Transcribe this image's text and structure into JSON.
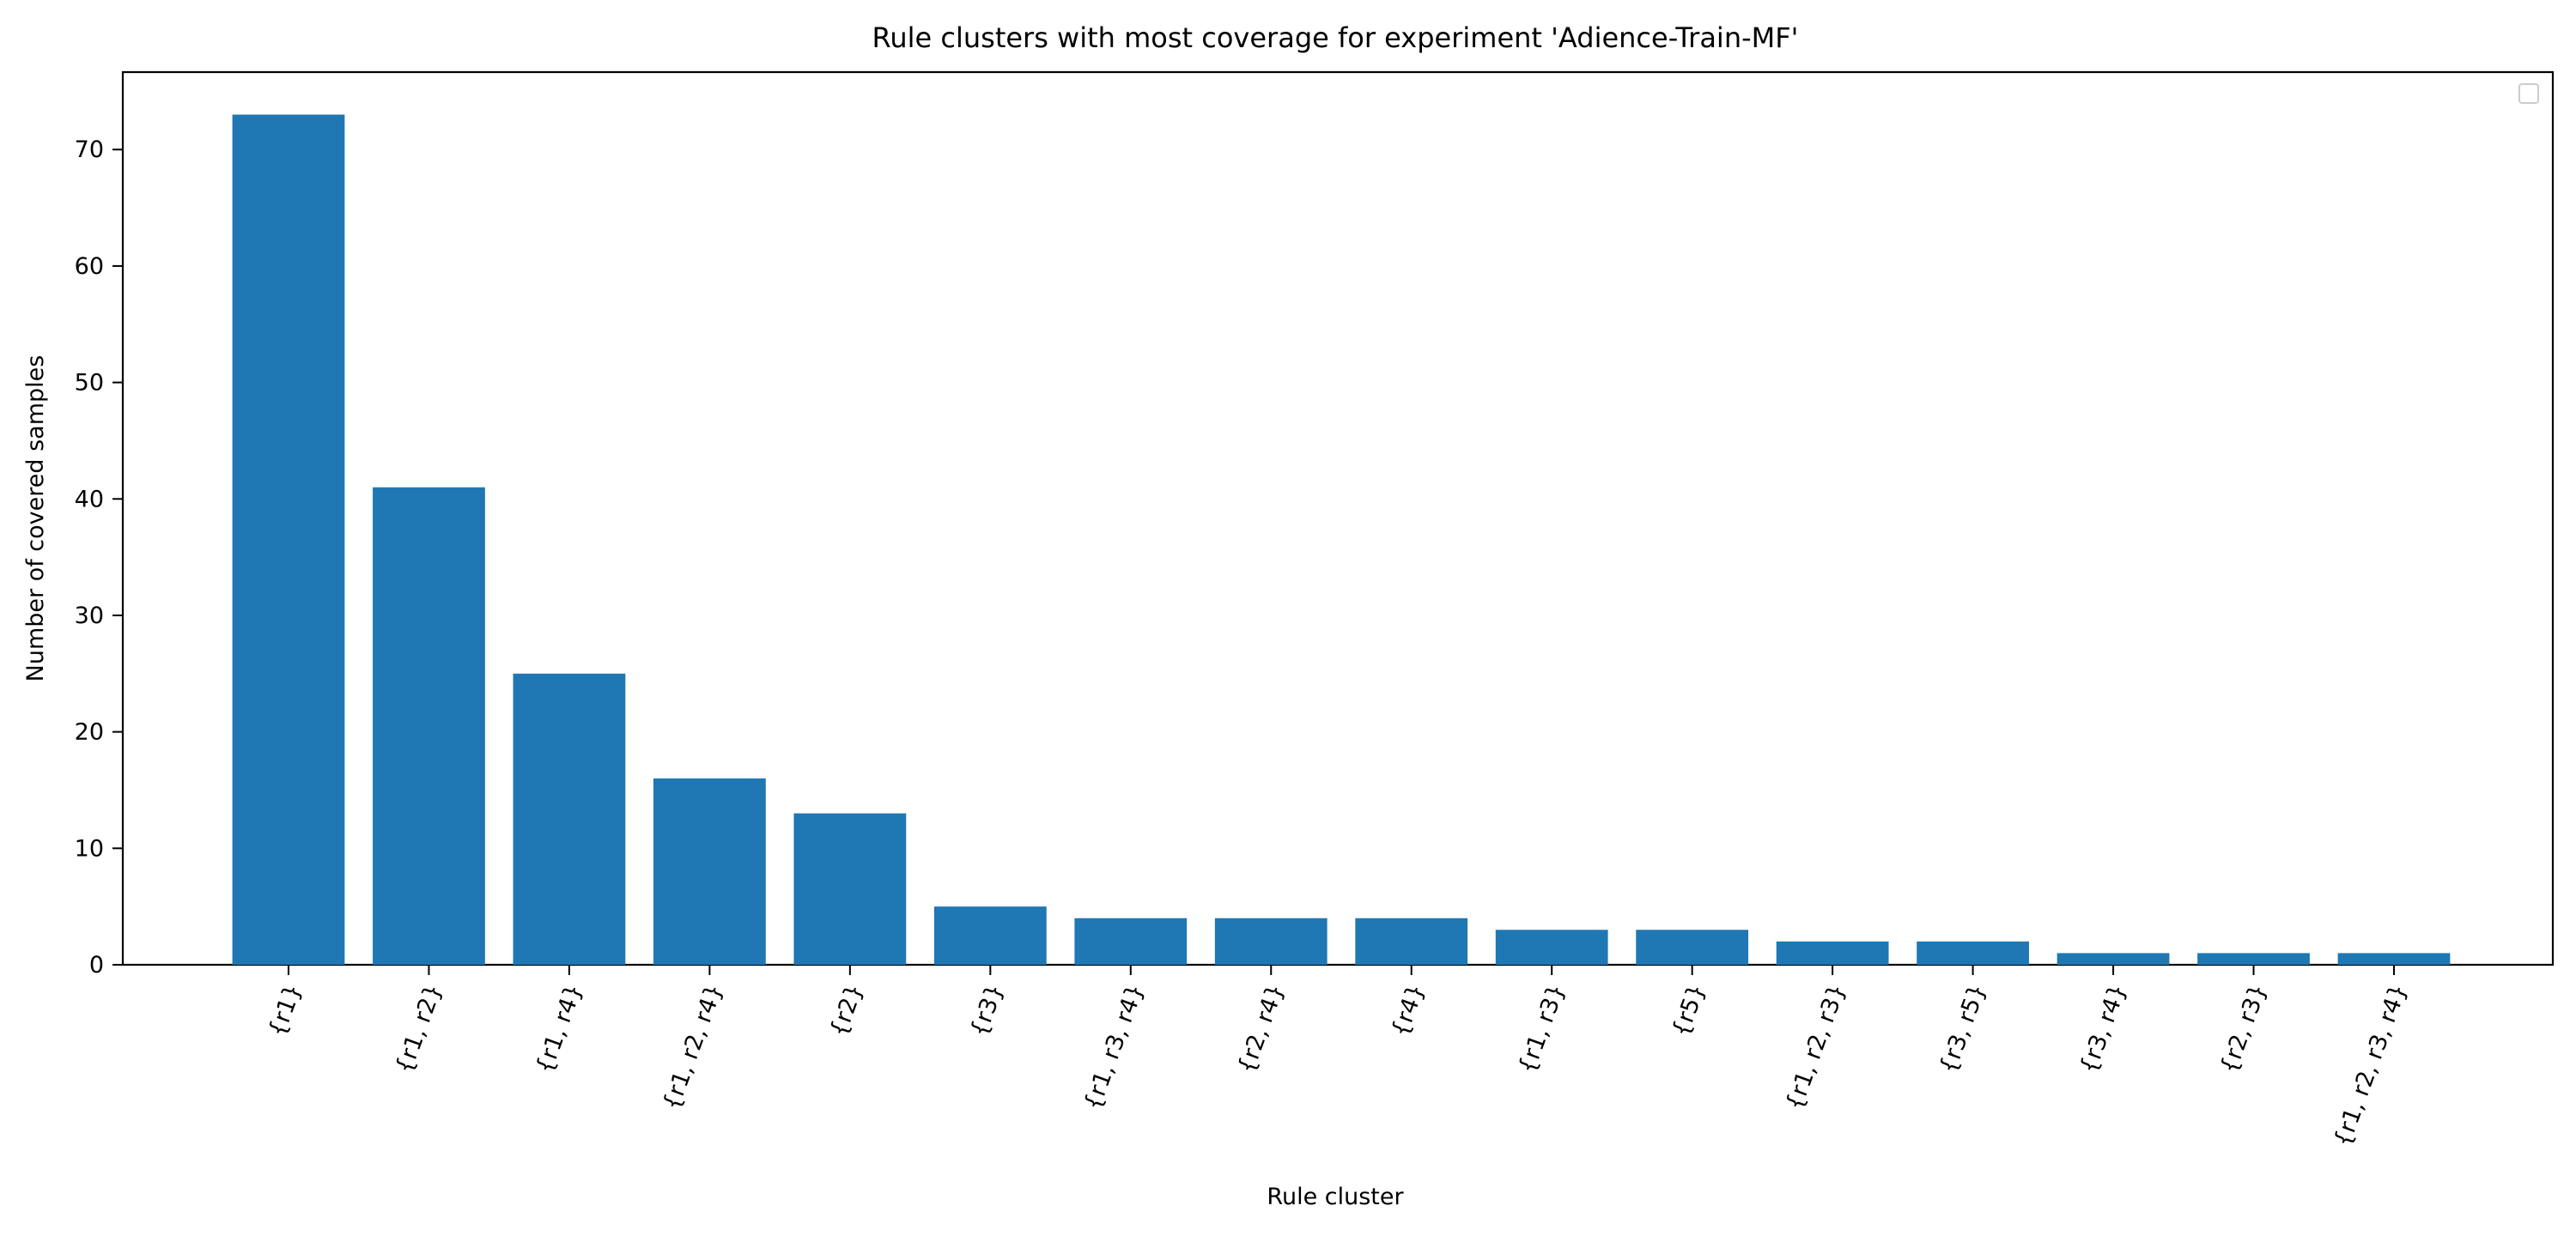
{
  "chart_data": {
    "type": "bar",
    "title": "Rule clusters with most coverage for experiment 'Adience-Train-MF'",
    "xlabel": "Rule cluster",
    "ylabel": "Number of covered samples",
    "categories": [
      "{r1}",
      "{r1, r2}",
      "{r1, r4}",
      "{r1, r2, r4}",
      "{r2}",
      "{r3}",
      "{r1, r3, r4}",
      "{r2, r4}",
      "{r4}",
      "{r1, r3}",
      "{r5}",
      "{r1, r2, r3}",
      "{r3, r5}",
      "{r3, r4}",
      "{r2, r3}",
      "{r1, r2, r3, r4}"
    ],
    "values": [
      73,
      41,
      25,
      16,
      13,
      5,
      4,
      4,
      4,
      3,
      3,
      2,
      2,
      1,
      1,
      1
    ],
    "ylim": [
      0,
      76.65
    ],
    "yticks": [
      0,
      10,
      20,
      30,
      40,
      50,
      60,
      70
    ],
    "bar_color": "#1f77b4",
    "grid": false,
    "legend": {
      "placement": "top-right",
      "entries": []
    }
  }
}
